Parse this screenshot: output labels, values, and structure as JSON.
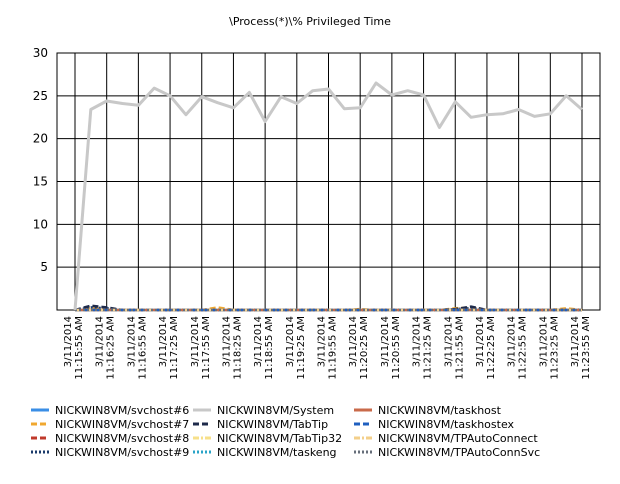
{
  "chart_data": {
    "type": "line",
    "title": "\\Process(*)\\% Privileged Time",
    "ylim": [
      0,
      30
    ],
    "y_ticks": [
      5,
      10,
      15,
      20,
      25,
      30
    ],
    "grid": true,
    "legend_position": "bottom",
    "x": [
      "3/11/2014 11:15:55 AM",
      "3/11/2014 11:16:10 AM",
      "3/11/2014 11:16:25 AM",
      "3/11/2014 11:16:40 AM",
      "3/11/2014 11:16:55 AM",
      "3/11/2014 11:17:10 AM",
      "3/11/2014 11:17:25 AM",
      "3/11/2014 11:17:40 AM",
      "3/11/2014 11:17:55 AM",
      "3/11/2014 11:18:10 AM",
      "3/11/2014 11:18:25 AM",
      "3/11/2014 11:18:40 AM",
      "3/11/2014 11:18:55 AM",
      "3/11/2014 11:19:10 AM",
      "3/11/2014 11:19:25 AM",
      "3/11/2014 11:19:40 AM",
      "3/11/2014 11:19:55 AM",
      "3/11/2014 11:20:10 AM",
      "3/11/2014 11:20:25 AM",
      "3/11/2014 11:20:40 AM",
      "3/11/2014 11:20:55 AM",
      "3/11/2014 11:21:10 AM",
      "3/11/2014 11:21:25 AM",
      "3/11/2014 11:21:40 AM",
      "3/11/2014 11:21:55 AM",
      "3/11/2014 11:22:10 AM",
      "3/11/2014 11:22:25 AM",
      "3/11/2014 11:22:40 AM",
      "3/11/2014 11:22:55 AM",
      "3/11/2014 11:23:10 AM",
      "3/11/2014 11:23:25 AM",
      "3/11/2014 11:23:40 AM",
      "3/11/2014 11:23:55 AM"
    ],
    "x_ticks": [
      [
        "3/11/2014",
        "11:15:55 AM"
      ],
      [
        "3/11/2014",
        "11:16:25 AM"
      ],
      [
        "3/11/2014",
        "11:16:55 AM"
      ],
      [
        "3/11/2014",
        "11:17:25 AM"
      ],
      [
        "3/11/2014",
        "11:17:55 AM"
      ],
      [
        "3/11/2014",
        "11:18:25 AM"
      ],
      [
        "3/11/2014",
        "11:18:55 AM"
      ],
      [
        "3/11/2014",
        "11:19:25 AM"
      ],
      [
        "3/11/2014",
        "11:19:55 AM"
      ],
      [
        "3/11/2014",
        "11:20:25 AM"
      ],
      [
        "3/11/2014",
        "11:20:55 AM"
      ],
      [
        "3/11/2014",
        "11:21:25 AM"
      ],
      [
        "3/11/2014",
        "11:21:55 AM"
      ],
      [
        "3/11/2014",
        "11:22:25 AM"
      ],
      [
        "3/11/2014",
        "11:22:55 AM"
      ],
      [
        "3/11/2014",
        "11:23:25 AM"
      ],
      [
        "3/11/2014",
        "11:23:55 AM"
      ]
    ],
    "series": [
      {
        "name": "NICKWIN8VM/svchost#6",
        "color": "#3a8ee6",
        "style": "solid",
        "values": [
          0,
          0,
          0,
          0,
          0,
          0,
          0,
          0,
          0,
          0,
          0,
          0,
          0,
          0,
          0,
          0,
          0,
          0,
          0,
          0,
          0,
          0,
          0,
          0,
          0,
          0,
          0,
          0,
          0,
          0,
          0,
          0,
          0
        ]
      },
      {
        "name": "NICKWIN8VM/svchost#7",
        "color": "#f0a830",
        "style": "dash",
        "values": [
          0,
          0.2,
          0.1,
          0,
          0,
          0,
          0,
          0,
          0,
          0.3,
          0,
          0,
          0,
          0,
          0,
          0,
          0,
          0,
          0.1,
          0,
          0,
          0,
          0,
          0,
          0.2,
          0.3,
          0,
          0,
          0,
          0,
          0,
          0.2,
          0
        ]
      },
      {
        "name": "NICKWIN8VM/svchost#8",
        "color": "#c0392b",
        "style": "dash",
        "values": [
          0,
          0,
          0,
          0,
          0,
          0,
          0,
          0,
          0,
          0,
          0,
          0,
          0,
          0,
          0,
          0,
          0,
          0,
          0,
          0,
          0,
          0,
          0,
          0,
          0,
          0,
          0,
          0,
          0,
          0,
          0,
          0,
          0
        ]
      },
      {
        "name": "NICKWIN8VM/svchost#9",
        "color": "#1a3a6a",
        "style": "dot",
        "values": [
          0,
          0.3,
          0.2,
          0,
          0,
          0,
          0,
          0,
          0,
          0,
          0,
          0,
          0,
          0,
          0,
          0,
          0,
          0,
          0,
          0,
          0,
          0,
          0,
          0,
          0.1,
          0.2,
          0,
          0,
          0,
          0,
          0,
          0,
          0
        ]
      },
      {
        "name": "NICKWIN8VM/System",
        "color": "#c8c8c8",
        "style": "solid",
        "values": [
          0,
          23.4,
          24.4,
          24.1,
          23.9,
          25.9,
          25.0,
          22.8,
          24.9,
          24.2,
          23.6,
          25.4,
          22.0,
          24.9,
          24.1,
          25.6,
          25.8,
          23.5,
          23.6,
          26.5,
          25.1,
          25.6,
          25.1,
          21.3,
          24.3,
          22.5,
          22.8,
          22.9,
          23.4,
          22.6,
          22.9,
          25.0,
          23.4
        ]
      },
      {
        "name": "NICKWIN8VM/TabTip",
        "color": "#1e2a4a",
        "style": "dash",
        "values": [
          0,
          0.5,
          0.3,
          0,
          0,
          0,
          0,
          0,
          0,
          0,
          0,
          0,
          0,
          0,
          0,
          0,
          0,
          0,
          0,
          0,
          0,
          0,
          0,
          0,
          0.1,
          0.4,
          0,
          0,
          0,
          0,
          0,
          0,
          0
        ]
      },
      {
        "name": "NICKWIN8VM/TabTip32",
        "color": "#f7e08a",
        "style": "dashdot",
        "values": [
          0,
          0,
          0,
          0,
          0,
          0,
          0,
          0,
          0,
          0,
          0,
          0,
          0,
          0,
          0,
          0,
          0,
          0,
          0,
          0,
          0,
          0,
          0,
          0,
          0,
          0,
          0,
          0,
          0,
          0,
          0,
          0,
          0
        ]
      },
      {
        "name": "NICKWIN8VM/taskeng",
        "color": "#2aa4c8",
        "style": "dot",
        "values": [
          0,
          0,
          0,
          0,
          0,
          0,
          0,
          0,
          0,
          0,
          0,
          0,
          0,
          0,
          0,
          0,
          0,
          0,
          0,
          0,
          0,
          0,
          0,
          0,
          0,
          0,
          0,
          0,
          0,
          0,
          0,
          0,
          0
        ]
      },
      {
        "name": "NICKWIN8VM/taskhost",
        "color": "#c96a4a",
        "style": "solid",
        "values": [
          0,
          0,
          0,
          0,
          0,
          0,
          0,
          0,
          0,
          0,
          0,
          0,
          0,
          0,
          0,
          0,
          0,
          0,
          0,
          0,
          0,
          0,
          0,
          0,
          0,
          0,
          0,
          0,
          0,
          0,
          0,
          0,
          0
        ]
      },
      {
        "name": "NICKWIN8VM/taskhostex",
        "color": "#1f5fbf",
        "style": "dash",
        "values": [
          0,
          0,
          0,
          0,
          0,
          0,
          0,
          0,
          0,
          0,
          0,
          0,
          0,
          0,
          0,
          0,
          0,
          0,
          0,
          0,
          0,
          0,
          0,
          0,
          0,
          0,
          0,
          0,
          0,
          0,
          0,
          0,
          0
        ]
      },
      {
        "name": "NICKWIN8VM/TPAutoConnect",
        "color": "#f3cf8a",
        "style": "dashdot",
        "values": [
          0,
          0,
          0,
          0,
          0,
          0,
          0,
          0,
          0,
          0,
          0,
          0,
          0,
          0,
          0,
          0,
          0,
          0,
          0,
          0,
          0,
          0,
          0,
          0,
          0,
          0,
          0,
          0,
          0,
          0,
          0,
          0,
          0
        ]
      },
      {
        "name": "NICKWIN8VM/TPAutoConnSvc",
        "color": "#666e7a",
        "style": "dot",
        "values": [
          0,
          0,
          0,
          0,
          0,
          0,
          0,
          0,
          0,
          0,
          0,
          0,
          0,
          0,
          0,
          0,
          0,
          0,
          0,
          0,
          0,
          0,
          0,
          0,
          0,
          0,
          0,
          0,
          0,
          0,
          0,
          0,
          0
        ]
      }
    ]
  }
}
